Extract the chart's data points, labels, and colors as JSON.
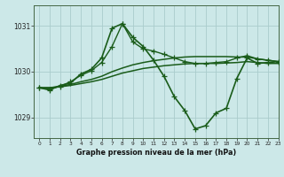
{
  "background_color": "#cce8e8",
  "grid_color": "#aacccc",
  "line_color": "#1a5c1a",
  "title": "Graphe pression niveau de la mer (hPa)",
  "xlim": [
    -0.5,
    23
  ],
  "ylim": [
    1028.55,
    1031.45
  ],
  "yticks": [
    1029,
    1030,
    1031
  ],
  "xticks": [
    0,
    1,
    2,
    3,
    4,
    5,
    6,
    7,
    8,
    9,
    10,
    11,
    12,
    13,
    14,
    15,
    16,
    17,
    18,
    19,
    20,
    21,
    22,
    23
  ],
  "series": [
    {
      "x": [
        0,
        1,
        2,
        3,
        4,
        5,
        6,
        7,
        8,
        9,
        10,
        11,
        12,
        13,
        14,
        15,
        16,
        17,
        18,
        19,
        20,
        21,
        22,
        23
      ],
      "y": [
        1029.65,
        1029.6,
        1029.7,
        1029.75,
        1029.95,
        1030.05,
        1030.3,
        1030.95,
        1031.05,
        1030.75,
        1030.55,
        1030.25,
        1029.9,
        1029.45,
        1029.15,
        1028.75,
        1028.82,
        1029.1,
        1029.2,
        1029.85,
        1030.3,
        1030.18,
        1030.2,
        1030.22
      ],
      "marker": "+",
      "lw": 1.2,
      "ms": 4.5,
      "zorder": 5
    },
    {
      "x": [
        0,
        1,
        2,
        3,
        4,
        5,
        6,
        7,
        8,
        9,
        10,
        11,
        12,
        13,
        14,
        15,
        16,
        17,
        18,
        19,
        20,
        21,
        22,
        23
      ],
      "y": [
        1029.65,
        1029.65,
        1029.68,
        1029.72,
        1029.78,
        1029.83,
        1029.9,
        1030.0,
        1030.08,
        1030.15,
        1030.2,
        1030.24,
        1030.27,
        1030.3,
        1030.32,
        1030.33,
        1030.33,
        1030.33,
        1030.33,
        1030.32,
        1030.32,
        1030.28,
        1030.25,
        1030.22
      ],
      "marker": null,
      "lw": 1.1,
      "ms": 0,
      "zorder": 3
    },
    {
      "x": [
        0,
        1,
        2,
        3,
        4,
        5,
        6,
        7,
        8,
        9,
        10,
        11,
        12,
        13,
        14,
        15,
        16,
        17,
        18,
        19,
        20,
        21,
        22,
        23
      ],
      "y": [
        1029.65,
        1029.65,
        1029.67,
        1029.7,
        1029.74,
        1029.78,
        1029.83,
        1029.9,
        1029.97,
        1030.02,
        1030.07,
        1030.1,
        1030.13,
        1030.15,
        1030.17,
        1030.18,
        1030.18,
        1030.18,
        1030.19,
        1030.2,
        1030.22,
        1030.2,
        1030.18,
        1030.18
      ],
      "marker": null,
      "lw": 1.1,
      "ms": 0,
      "zorder": 3
    },
    {
      "x": [
        0,
        1,
        2,
        3,
        4,
        5,
        6,
        7,
        8,
        9,
        10,
        11,
        12,
        13,
        14,
        15,
        16,
        17,
        18,
        19,
        20,
        21,
        22,
        23
      ],
      "y": [
        1029.65,
        1029.62,
        1029.68,
        1029.78,
        1029.92,
        1030.02,
        1030.2,
        1030.55,
        1031.05,
        1030.65,
        1030.5,
        1030.45,
        1030.38,
        1030.3,
        1030.22,
        1030.18,
        1030.18,
        1030.2,
        1030.22,
        1030.3,
        1030.35,
        1030.28,
        1030.25,
        1030.22
      ],
      "marker": "+",
      "lw": 1.0,
      "ms": 4.0,
      "zorder": 4
    }
  ]
}
